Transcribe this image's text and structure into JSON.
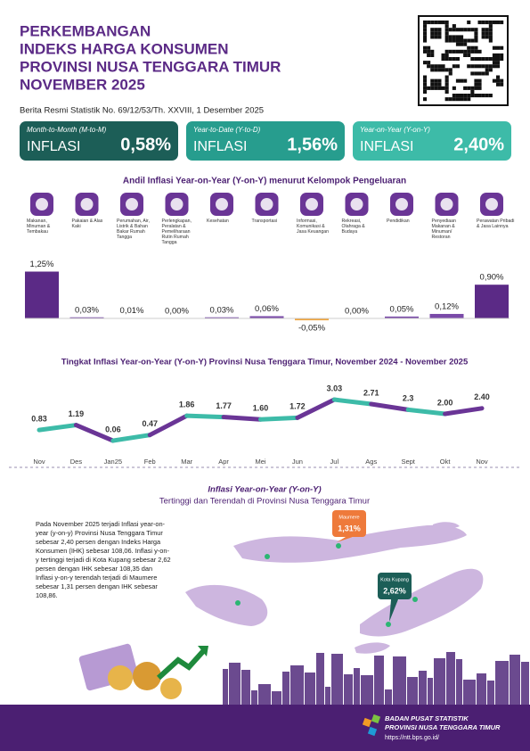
{
  "header": {
    "title_lines": [
      "PERKEMBANGAN",
      "INDEKS HARGA KONSUMEN",
      "PROVINSI NUSA TENGGARA TIMUR",
      "NOVEMBER 2025"
    ],
    "subtitle": "Berita Resmi Statistik No. 69/12/53/Th. XXVIII, 1 Desember 2025"
  },
  "cards": [
    {
      "period": "Month-to-Month (M-to-M)",
      "label": "INFLASI",
      "value": "0,58%",
      "color": "#1c5e57"
    },
    {
      "period": "Year-to-Date (Y-to-D)",
      "label": "INFLASI",
      "value": "1,56%",
      "color": "#279d8e"
    },
    {
      "period": "Year-on-Year (Y-on-Y)",
      "label": "INFLASI",
      "value": "2,40%",
      "color": "#3dbba8"
    }
  ],
  "chart_data": [
    {
      "type": "bar",
      "title": "Andil Inflasi Year-on-Year (Y-on-Y) menurut Kelompok Pengeluaran",
      "categories": [
        "Makanan, Minuman & Tembakau",
        "Pakaian & Alas Kaki",
        "Perumahan, Air, Listrik & Bahan Bakar Rumah Tangga",
        "Perlengkapan, Peralatan & Pemeliharaan Rutin Rumah Tangga",
        "Kesehatan",
        "Transportasi",
        "Informasi, Komunikasi & Jasa Keuangan",
        "Rekreasi, Olahraga & Budaya",
        "Pendidikan",
        "Penyediaan Makanan & Minuman/ Restoran",
        "Perawatan Pribadi & Jasa Lainnya"
      ],
      "values": [
        1.25,
        0.03,
        0.01,
        0.0,
        0.03,
        0.06,
        -0.05,
        0.0,
        0.05,
        0.12,
        0.9
      ],
      "value_labels": [
        "1,25%",
        "0,03%",
        "0,01%",
        "0,00%",
        "0,03%",
        "0,06%",
        "-0,05%",
        "0,00%",
        "0,05%",
        "0,12%",
        "0,90%"
      ],
      "color": "#5b2a86",
      "negative_color": "#f0a43a"
    },
    {
      "type": "line",
      "title": "Tingkat Inflasi Year-on-Year (Y-on-Y) Provinsi Nusa Tenggara Timur, November 2024 - November 2025",
      "categories": [
        "Nov",
        "Des",
        "Jan25",
        "Feb",
        "Mar",
        "Apr",
        "Mei",
        "Jun",
        "Jul",
        "Ags",
        "Sept",
        "Okt",
        "Nov"
      ],
      "values": [
        0.83,
        1.19,
        0.06,
        0.47,
        1.86,
        1.77,
        1.6,
        1.72,
        3.03,
        2.71,
        2.3,
        2.0,
        2.4
      ],
      "value_labels": [
        "0.83",
        "1.19",
        "0.06",
        "0.47",
        "1.86",
        "1.77",
        "1.60",
        "1.72",
        "3.03",
        "2.71",
        "2.3",
        "2.00",
        "2.40"
      ],
      "colors": [
        "#3dbba8",
        "#6a3596"
      ]
    }
  ],
  "map": {
    "title": "Inflasi Year-on-Year (Y-on-Y)",
    "subtitle": "Tertinggi dan Terendah di Provinsi Nusa Tenggara Timur",
    "text": "Pada November 2025 terjadi Inflasi year-on-year (y-on-y) Provinsi Nusa Tenggara Timur sebesar 2,40 persen dengan Indeks Harga Konsumen (IHK) sebesar 108,06. Inflasi y-on-y tertinggi terjadi di Kota Kupang sebesar 2,62 persen dengan IHK sebesar 108,35 dan Inflasi y-on-y terendah terjadi di Maumere sebesar 1,31 persen dengan IHK sebesar 108,86.",
    "callouts": [
      {
        "city": "Maumere",
        "value": "1,31%",
        "color": "#ee7a3b"
      },
      {
        "city": "Kota Kupang",
        "value": "2,62%",
        "color": "#1c5e57"
      }
    ]
  },
  "footer": {
    "org": "BADAN PUSAT STATISTIK",
    "province": "PROVINSI NUSA TENGGARA TIMUR",
    "url": "https://ntt.bps.go.id/"
  }
}
